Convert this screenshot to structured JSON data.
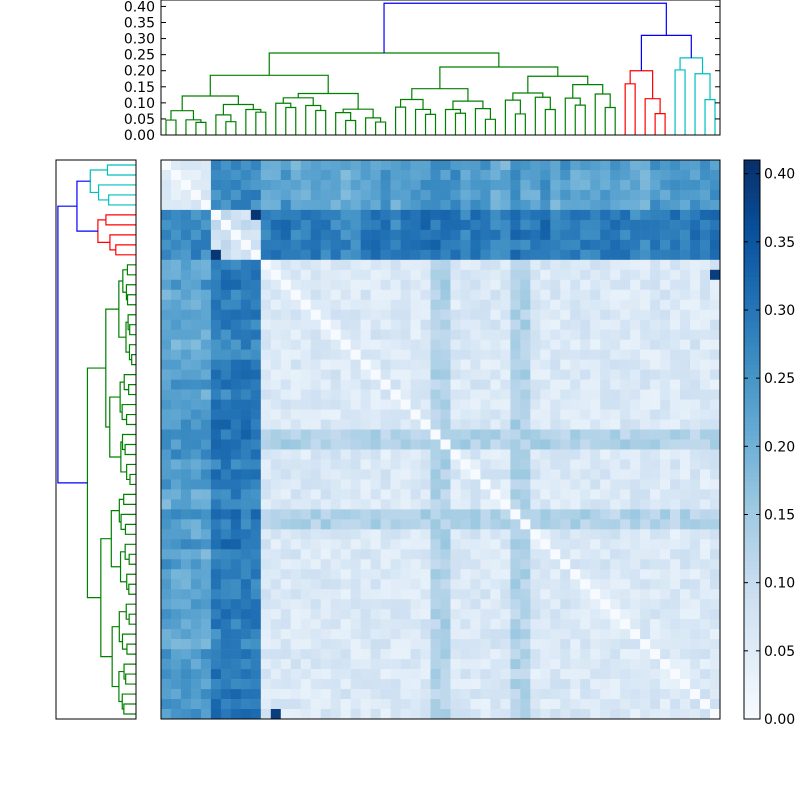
{
  "chart_data": {
    "type": "heatmap",
    "n": 56,
    "cluster_sizes": {
      "cyan": 5,
      "red": 5,
      "green": 46
    },
    "color_scale": {
      "name": "Blues",
      "min": 0.0,
      "max": 0.41
    },
    "dendrogram_top": {
      "orientation": "top",
      "leaf_order": [
        "green",
        "red",
        "cyan"
      ],
      "yticks": [
        "0.00",
        "0.05",
        "0.10",
        "0.15",
        "0.20",
        "0.25",
        "0.30",
        "0.35",
        "0.40"
      ],
      "ylim": [
        0,
        0.42
      ],
      "root_height": 0.41,
      "subtree_heights": {
        "green": 0.255,
        "red": 0.2,
        "cyan": 0.24,
        "red_cyan": 0.31
      },
      "colors": {
        "root": "#0000ff",
        "green": "#008000",
        "red": "#ff0000",
        "cyan": "#00bfbf"
      }
    },
    "dendrogram_left": {
      "orientation": "left",
      "leaf_order": [
        "cyan",
        "red",
        "green"
      ]
    },
    "colorbar": {
      "ticks": [
        "0.00",
        "0.05",
        "0.10",
        "0.15",
        "0.20",
        "0.25",
        "0.30",
        "0.35",
        "0.40"
      ]
    },
    "xlabel": "",
    "ylabel": "",
    "title": ""
  }
}
